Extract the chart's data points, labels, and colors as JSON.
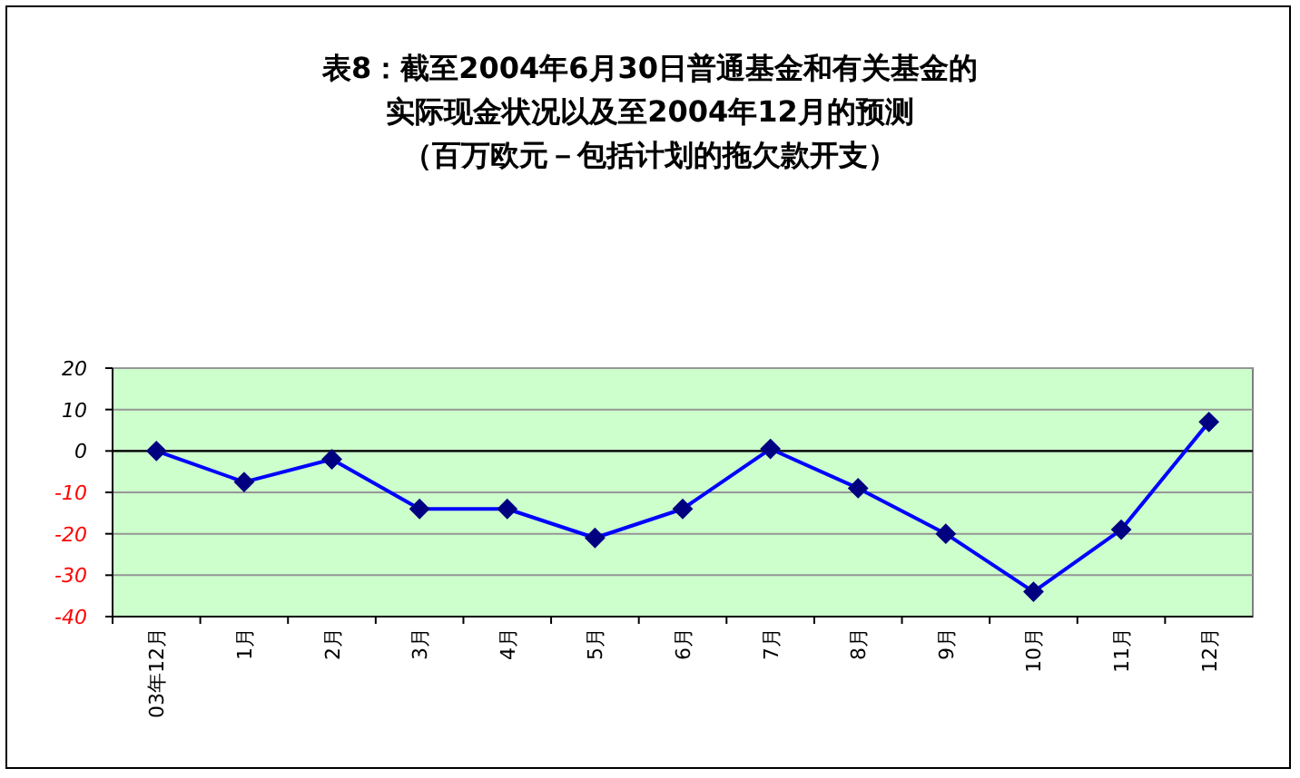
{
  "chart_data": {
    "type": "line",
    "title": "表8：截至2004年6月30日普通基金和有关基金的实际现金状况以及至2004年12月的预测",
    "subtitle": "（百万欧元－包括计划的拖欠款开支）",
    "categories": [
      "03年12月",
      "1月",
      "2月",
      "3月",
      "4月",
      "5月",
      "6月",
      "7月",
      "8月",
      "9月",
      "10月",
      "11月",
      "12月"
    ],
    "series": [
      {
        "color": "#0000ff",
        "values": [
          0,
          -7.5,
          -2,
          -14,
          -14,
          -21,
          -14,
          0.5,
          -9,
          -20,
          -34,
          -19,
          7
        ]
      }
    ],
    "ylim": [
      -40,
      20
    ],
    "yticks": [
      -40,
      -30,
      -20,
      -10,
      0,
      10,
      20
    ],
    "ref_lines": [
      {
        "axis": "y",
        "value": 0,
        "color": "#000000"
      }
    ],
    "grid": "y",
    "marker": "diamond",
    "line_style": "solid"
  }
}
